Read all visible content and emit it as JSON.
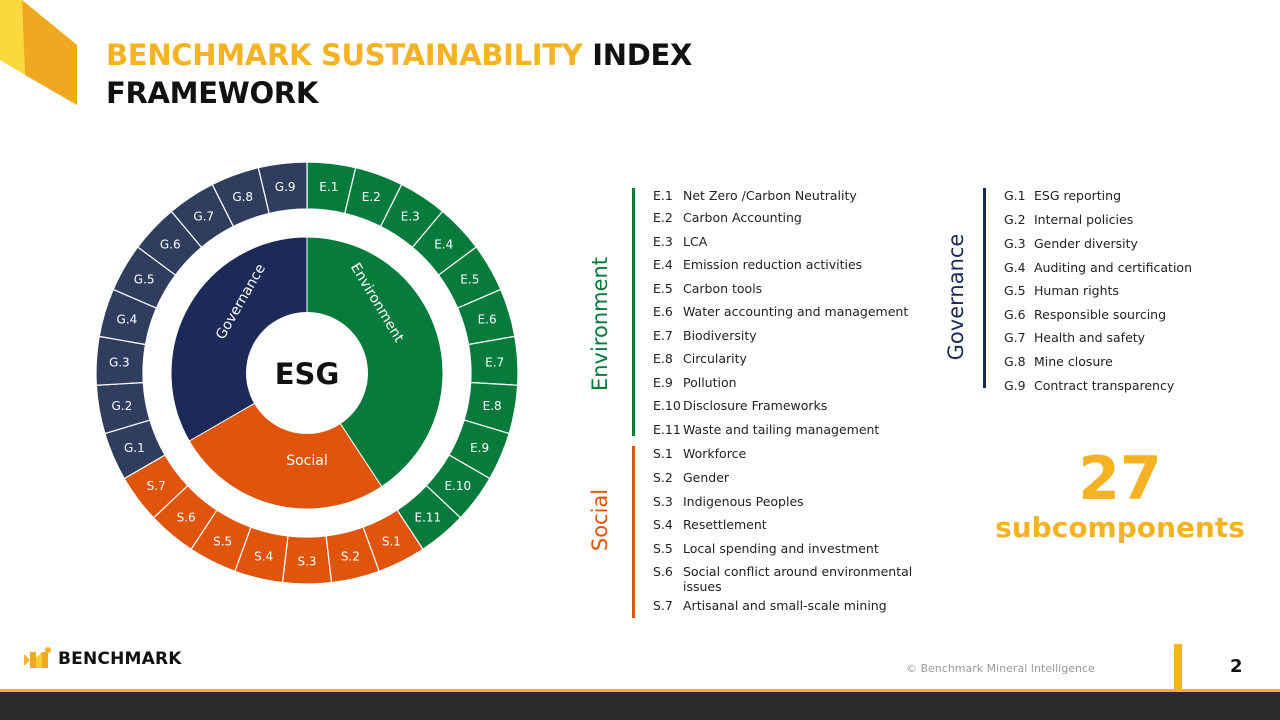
{
  "title": {
    "accent": "BENCHMARK SUSTAINABILITY",
    "rest": " INDEX",
    "line2": "FRAMEWORK"
  },
  "colors": {
    "environment": "#067b3c",
    "social": "#e1540b",
    "governance": "#1b2a58",
    "governance_outer": "#2f3e5f",
    "accent": "#f5b324"
  },
  "wheel": {
    "center": "ESG",
    "sectors": {
      "environment": "Environment",
      "social": "Social",
      "governance": "Governance"
    },
    "outer_environment": [
      "E.1",
      "E.2",
      "E.3",
      "E.4",
      "E.5",
      "E.6",
      "E.7",
      "E.8",
      "E.9",
      "E.10",
      "E.11"
    ],
    "outer_social": [
      "S.1",
      "S.2",
      "S.3",
      "S.4",
      "S.5",
      "S.6",
      "S.7"
    ],
    "outer_governance": [
      "G.1",
      "G.2",
      "G.3",
      "G.4",
      "G.5",
      "G.6",
      "G.7",
      "G.8",
      "G.9"
    ]
  },
  "environment": {
    "label": "Environment",
    "items": [
      {
        "code": "E.1",
        "text": "Net Zero /Carbon Neutrality"
      },
      {
        "code": "E.2",
        "text": "Carbon Accounting"
      },
      {
        "code": "E.3",
        "text": "LCA"
      },
      {
        "code": "E.4",
        "text": "Emission reduction activities"
      },
      {
        "code": "E.5",
        "text": "Carbon tools"
      },
      {
        "code": "E.6",
        "text": "Water accounting and management"
      },
      {
        "code": "E.7",
        "text": "Biodiversity"
      },
      {
        "code": "E.8",
        "text": "Circularity"
      },
      {
        "code": "E.9",
        "text": "Pollution"
      },
      {
        "code": "E.10",
        "text": "Disclosure Frameworks"
      },
      {
        "code": "E.11",
        "text": "Waste and tailing management"
      }
    ]
  },
  "social": {
    "label": "Social",
    "items": [
      {
        "code": "S.1",
        "text": "Workforce"
      },
      {
        "code": "S.2",
        "text": "Gender"
      },
      {
        "code": "S.3",
        "text": "Indigenous Peoples"
      },
      {
        "code": "S.4",
        "text": "Resettlement"
      },
      {
        "code": "S.5",
        "text": "Local spending and investment"
      },
      {
        "code": "S.6",
        "text": "Social conflict around environmental issues"
      },
      {
        "code": "S.7",
        "text": "Artisanal and small-scale mining"
      }
    ]
  },
  "governance": {
    "label": "Governance",
    "items": [
      {
        "code": "G.1",
        "text": "ESG reporting"
      },
      {
        "code": "G.2",
        "text": "Internal policies"
      },
      {
        "code": "G.3",
        "text": "Gender diversity"
      },
      {
        "code": "G.4",
        "text": "Auditing and certification"
      },
      {
        "code": "G.5",
        "text": "Human rights"
      },
      {
        "code": "G.6",
        "text": "Responsible sourcing"
      },
      {
        "code": "G.7",
        "text": "Health and safety"
      },
      {
        "code": "G.8",
        "text": "Mine closure"
      },
      {
        "code": "G.9",
        "text": "Contract transparency"
      }
    ]
  },
  "summary": {
    "count": "27",
    "label": "subcomponents"
  },
  "footer": {
    "logo": "BENCHMARK",
    "copyright": "© Benchmark Mineral Intelligence",
    "page": "2"
  }
}
